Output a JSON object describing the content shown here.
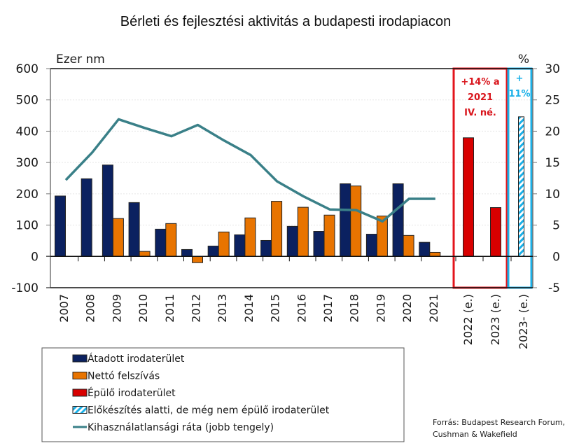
{
  "chart_data": {
    "type": "bar",
    "title": "Bérleti és fejlesztési aktivitás a budapesti irodapiacon",
    "ylabel": "Ezer nm",
    "ylabel_right": "%",
    "ylim": [
      -100,
      600
    ],
    "ylim_right": [
      -5,
      30
    ],
    "yticks": [
      -100,
      0,
      100,
      200,
      300,
      400,
      500,
      600
    ],
    "yticks_right": [
      -5,
      0,
      5,
      10,
      15,
      20,
      25,
      30
    ],
    "grid": true,
    "legend_position": "bottom-left",
    "categories": [
      "2007",
      "2008",
      "2009",
      "2010",
      "2011",
      "2012",
      "2013",
      "2014",
      "2015",
      "2016",
      "2017",
      "2018",
      "2019",
      "2020",
      "2021",
      "2022 (e.)",
      "2023 (e.)",
      "2023- (e.)"
    ],
    "series": [
      {
        "name": "Átadott irodaterület",
        "type": "bar",
        "color": "#0b2160",
        "values": [
          193,
          248,
          292,
          172,
          87,
          22,
          33,
          69,
          51,
          96,
          80,
          232,
          71,
          232,
          45,
          null,
          null,
          null
        ]
      },
      {
        "name": "Nettó felszívás",
        "type": "bar",
        "color": "#e87400",
        "values": [
          null,
          null,
          121,
          16,
          105,
          -20,
          78,
          123,
          176,
          157,
          132,
          225,
          129,
          67,
          13,
          null,
          null,
          null
        ]
      },
      {
        "name": "Épülő irodaterület",
        "type": "bar",
        "color": "#d80000",
        "values": [
          null,
          null,
          null,
          null,
          null,
          null,
          null,
          null,
          null,
          null,
          null,
          null,
          null,
          null,
          null,
          379,
          156,
          null
        ]
      },
      {
        "name": "Előkészítés alatti, de még nem épülő irodaterület",
        "type": "bar-hatched",
        "color": "#1ab0e8",
        "values": [
          null,
          null,
          null,
          null,
          null,
          null,
          null,
          null,
          null,
          null,
          null,
          null,
          null,
          null,
          null,
          null,
          null,
          446
        ]
      },
      {
        "name": "Kihasználatlansági ráta (jobb tengely)",
        "type": "line",
        "axis": "right",
        "color": "#3a8088",
        "values": [
          12.2,
          16.6,
          21.9,
          20.5,
          19.2,
          21.0,
          18.5,
          16.2,
          12.0,
          9.6,
          7.5,
          7.4,
          5.6,
          9.2,
          9.2,
          null,
          null,
          null
        ]
      }
    ],
    "annotations": [
      {
        "text_lines": [
          "+14% a",
          "2021",
          "IV. né."
        ],
        "color": "#d9151c",
        "group": "2022-2023 box"
      },
      {
        "text_lines": [
          "+",
          "11%"
        ],
        "color": "#1ab0e8",
        "group": "2023- box"
      }
    ],
    "source": [
      "Forrás: Budapest Research Forum,",
      "Cushman & Wakefield"
    ]
  }
}
